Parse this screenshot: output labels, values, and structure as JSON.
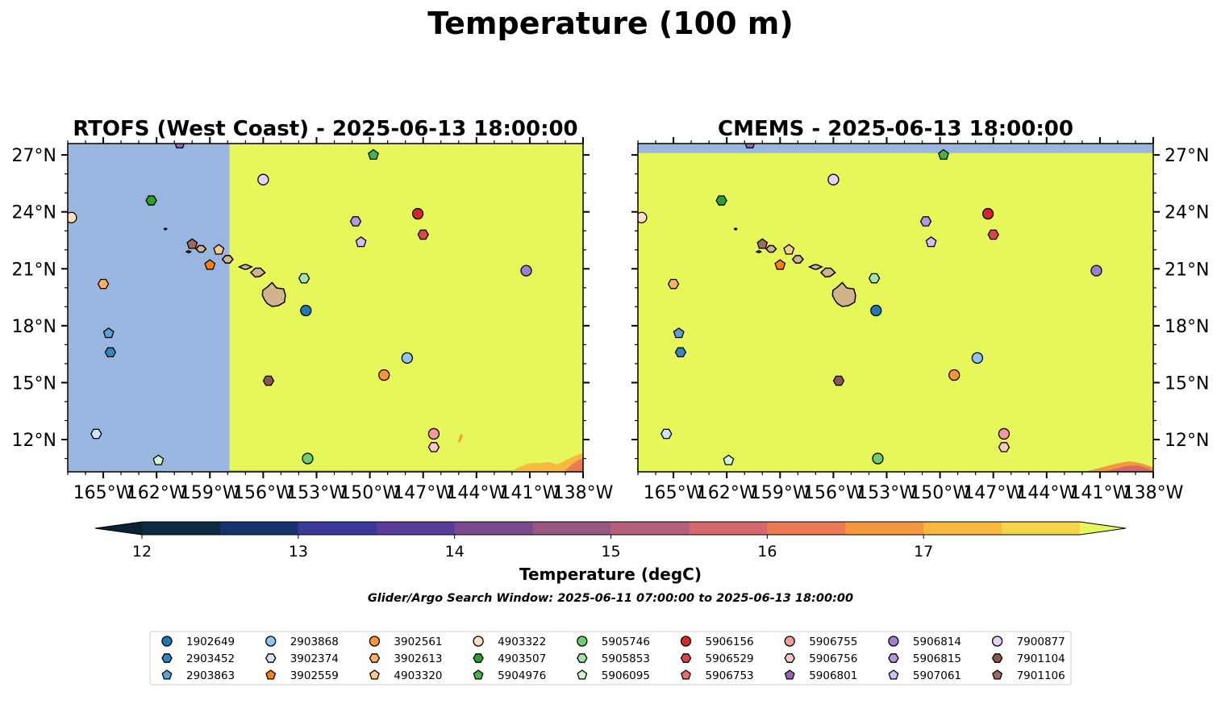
{
  "figure": {
    "title": "Temperature (100 m)",
    "note": "Glider/Argo Search Window: 2025-06-11 07:00:00 to 2025-06-13 18:00:00"
  },
  "colorbar": {
    "label": "Temperature (degC)",
    "range": [
      11.75,
      17.75
    ],
    "ticks": [
      "12",
      "13",
      "14",
      "15",
      "16",
      "17"
    ],
    "tick_values": [
      12,
      13,
      14,
      15,
      16,
      17
    ],
    "levels": [
      12.0,
      12.5,
      13.0,
      13.5,
      14.0,
      14.5,
      15.0,
      15.5,
      16.0,
      16.5,
      17.0,
      17.5
    ],
    "colors": [
      "#0d2a41",
      "#17336e",
      "#3b3899",
      "#5a3d98",
      "#7b4a8d",
      "#985783",
      "#b35f7d",
      "#d3686e",
      "#ec7b55",
      "#f4983f",
      "#f7b83f",
      "#f4d54a"
    ],
    "under_color": "#0a2233",
    "over_color": "#e6f75a"
  },
  "chart_data": {
    "type": "map",
    "panels": [
      {
        "title": "RTOFS (West Coast) - 2025-06-13 18:00:00",
        "lon_range": [
          -167,
          -138
        ],
        "lat_range": [
          10.3,
          27.6
        ],
        "no_data_color": "#98b6e0",
        "field_color": "#e6f75a",
        "field_west_edge_lon": -157.9,
        "y_axis_side": "left"
      },
      {
        "title": "CMEMS - 2025-06-13 18:00:00",
        "lon_range": [
          -167,
          -138
        ],
        "lat_range": [
          10.3,
          27.6
        ],
        "no_data_color": "#98b6e0",
        "field_color": "#e6f75a",
        "field_north_edge_lat": 27.1,
        "y_axis_side": "right"
      }
    ],
    "x_ticks": [
      "165°W",
      "162°W",
      "159°W",
      "156°W",
      "153°W",
      "150°W",
      "147°W",
      "144°W",
      "141°W",
      "138°W"
    ],
    "x_tick_values": [
      -165,
      -162,
      -159,
      -156,
      -153,
      -150,
      -147,
      -144,
      -141,
      -138
    ],
    "y_ticks": [
      "27°N",
      "24°N",
      "21°N",
      "18°N",
      "15°N",
      "12°N"
    ],
    "y_tick_values": [
      27,
      24,
      21,
      18,
      15,
      12
    ],
    "floats": [
      {
        "id": "1902649",
        "color": "#1f77b4",
        "marker": "circle",
        "lon": -153.6,
        "lat": 18.8
      },
      {
        "id": "2903452",
        "color": "#3486c0",
        "marker": "hexagon",
        "lon": -164.6,
        "lat": 16.6
      },
      {
        "id": "2903863",
        "color": "#5ba3d6",
        "marker": "pentagon",
        "lon": -164.7,
        "lat": 17.6
      },
      {
        "id": "2903868",
        "color": "#8fc4ec",
        "marker": "circle",
        "lon": -147.9,
        "lat": 16.3
      },
      {
        "id": "3902374",
        "color": "#cfe4f7",
        "marker": "hexagon",
        "lon": -165.4,
        "lat": 12.3
      },
      {
        "id": "3902559",
        "color": "#ff7f0e",
        "marker": "pentagon",
        "lon": -159.0,
        "lat": 21.2
      },
      {
        "id": "3902561",
        "color": "#ff9430",
        "marker": "circle",
        "lon": -149.2,
        "lat": 15.4
      },
      {
        "id": "3902613",
        "color": "#ffb062",
        "marker": "hexagon",
        "lon": -165.0,
        "lat": 20.2
      },
      {
        "id": "4903320",
        "color": "#ffc98d",
        "marker": "pentagon",
        "lon": -158.5,
        "lat": 22.0
      },
      {
        "id": "4903322",
        "color": "#ffdfc0",
        "marker": "circle",
        "lon": -166.8,
        "lat": 23.7
      },
      {
        "id": "4903507",
        "color": "#2ca02c",
        "marker": "hexagon",
        "lon": -162.3,
        "lat": 24.6
      },
      {
        "id": "5904976",
        "color": "#45b545",
        "marker": "pentagon",
        "lon": -149.8,
        "lat": 27.0
      },
      {
        "id": "5905746",
        "color": "#6ccf6c",
        "marker": "circle",
        "lon": -153.5,
        "lat": 11.0
      },
      {
        "id": "5905853",
        "color": "#a2e5a2",
        "marker": "hexagon",
        "lon": -153.7,
        "lat": 20.5
      },
      {
        "id": "5906095",
        "color": "#d2f7cf",
        "marker": "pentagon",
        "lon": -161.9,
        "lat": 10.9
      },
      {
        "id": "5906156",
        "color": "#d62728",
        "marker": "circle",
        "lon": -147.3,
        "lat": 23.9
      },
      {
        "id": "5906529",
        "color": "#df4343",
        "marker": "hexagon",
        "lon": -147.0,
        "lat": 22.8
      },
      {
        "id": "5906753",
        "color": "#ee6f6f",
        "marker": "pentagon",
        "lon": -146.4,
        "lat": 12.3
      },
      {
        "id": "5906755",
        "color": "#f49a9a",
        "marker": "circle",
        "lon": -146.4,
        "lat": 12.3
      },
      {
        "id": "5906756",
        "color": "#fac6c6",
        "marker": "hexagon",
        "lon": -146.4,
        "lat": 11.6
      },
      {
        "id": "5906801",
        "color": "#9467bd",
        "marker": "pentagon",
        "lon": -160.7,
        "lat": 27.6
      },
      {
        "id": "5906814",
        "color": "#a07ccb",
        "marker": "circle",
        "lon": -141.2,
        "lat": 20.9
      },
      {
        "id": "5906815",
        "color": "#b896df",
        "marker": "hexagon",
        "lon": -150.8,
        "lat": 23.5
      },
      {
        "id": "5907061",
        "color": "#d3bdf2",
        "marker": "pentagon",
        "lon": -150.5,
        "lat": 22.4
      },
      {
        "id": "7900877",
        "color": "#e6d3fb",
        "marker": "circle",
        "lon": -156.0,
        "lat": 25.7
      },
      {
        "id": "7901104",
        "color": "#8c564b",
        "marker": "hexagon",
        "lon": -155.7,
        "lat": 15.1
      },
      {
        "id": "7901106",
        "color": "#a06a5f",
        "marker": "pentagon",
        "lon": -160.0,
        "lat": 22.3
      }
    ]
  }
}
